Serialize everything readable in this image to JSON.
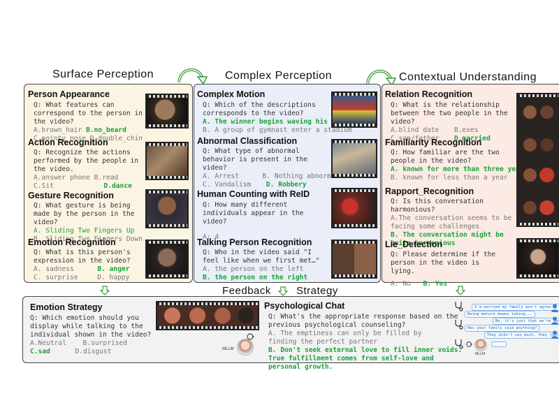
{
  "headers": {
    "surface": "Surface Perception",
    "complex": "Complex Perception",
    "contextual": "Contextual Understanding",
    "feedback": "Feedback",
    "strategy": "Strategy"
  },
  "surface": {
    "person_appearance": {
      "title": "Person Appearance",
      "question": "Q: What features can correspond to the person in the video?",
      "opt_a": "A.brown_hair",
      "opt_b": "B.no_beard",
      "opt_c": "C.pointy_nose",
      "opt_d": "D.double_chin"
    },
    "action": {
      "title": "Action Recognition",
      "question": "Q: Recognize the actions performed by the people in the video.",
      "opt_a": "A.answer phone",
      "opt_b": "B.read",
      "opt_c": "C.Sit",
      "opt_d": "D.dance"
    },
    "gesture": {
      "title": "Gesture Recognition",
      "question": "Q: What gesture is being made by the person in the video?",
      "opt_a": "A. Sliding Two Fingers Up",
      "opt_b": "B. Sliding Two Fingers Down"
    },
    "emotion": {
      "title": "Emotion Recognition",
      "question": "Q: What is this person's expression in the video?",
      "opt_a": "A. sadness",
      "opt_b": "B. anger",
      "opt_c": "C. surprise",
      "opt_d": "D. happy"
    }
  },
  "complex": {
    "motion": {
      "title": "Complex Motion",
      "question": "Q: Which of the descriptions corresponds to the video?",
      "opt_a": "A. The winner begins waving his flag",
      "opt_b": "B. A group of gymnast enter a stadium"
    },
    "abnormal": {
      "title": "Abnormal Classification",
      "question": "Q: What type of abnormal behavior is present in the video?",
      "opt_a": "A. Arrest",
      "opt_b": "B. Nothing abnormal",
      "opt_c": "C. Vandalism",
      "opt_d": "D. Robbery"
    },
    "counting": {
      "title": "Human Counting with ReID",
      "question": "Q: How many different individuals appear in the video?",
      "answer": "A: 4"
    },
    "talking": {
      "title": "Talking Person Recognition",
      "question": "Q: Who in the video said \"I feel like when we first met…\"",
      "opt_a": "A. the person on the left",
      "opt_b": "B. the person on the right"
    }
  },
  "contextual": {
    "relation": {
      "title": "Relation Recognition",
      "question": "Q: What is the relationship between the two people in the video?",
      "opt_a": "A.blind date",
      "opt_b": "B.exes",
      "opt_c": "C.son/father",
      "opt_d": "D.married"
    },
    "familiarity": {
      "title": "Familiarity Recognition",
      "question": "Q: How familiar are the two people in the video?",
      "opt_a": "A. known for more than three years",
      "opt_b": "B. known for less than a year"
    },
    "rapport": {
      "title": "Rapport_Recognition",
      "question": "Q: Is this conversation harmonious?",
      "opt_a": "A.The conversation seems to be facing some challenges",
      "opt_b": "B. The conversation might be quite harmonious"
    },
    "lie": {
      "title": "Lie_Detection",
      "question": "Q: Please determine if the person in the video is lying.",
      "opt_a": "A. No",
      "opt_b": "B. Yes"
    }
  },
  "feedback": {
    "emotion_strategy": {
      "title": "Emotion Strategy",
      "question": "Q: Which emotion should you display while talking to the individual shown in the video?",
      "opt_a": "A.Neutral",
      "opt_b": "B.surprised",
      "opt_c": "C.sad",
      "opt_d": "D.disgust"
    },
    "mllm_label": "MLLM",
    "psych": {
      "title": "Psychological Chat",
      "question": "Q: What's the appropriate response based on the previous psychological counseling?",
      "opt_a": "A. The emptiness can only be filled by finding the perfect partner",
      "opt_b": "B. Don't seek external love to fill inner voids. True fulfillment comes from self-love and personal growth."
    },
    "chat": {
      "m1": "I'm worried my family won't agree...",
      "m2": "Being mature means taking...",
      "m3": "No, it's just that we're too...",
      "m4": "Has your family said anything?",
      "m5": "They didn't say much, they just..."
    }
  },
  "colors": {
    "surface_bg": "#fbf4e3",
    "complex_bg": "#e9eef8",
    "contextual_bg": "#fbebe4",
    "feedback_bg": "#f2f2f2",
    "answer_green": "#1aa33a",
    "arrow_green": "#3a9a3a"
  }
}
